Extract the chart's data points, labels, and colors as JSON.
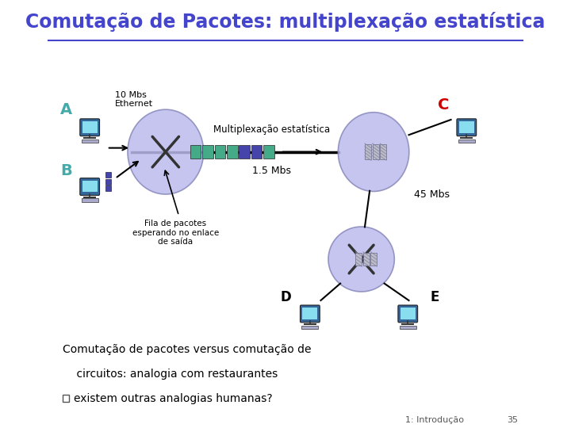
{
  "title": "Comutação de Pacotes: multiplexação estatística",
  "title_color": "#4444cc",
  "title_fontsize": 17,
  "bg_color": "#ffffff",
  "label_A": "A",
  "label_B": "B",
  "label_C": "C",
  "label_D": "D",
  "label_E": "E",
  "label_A_color": "#44aaaa",
  "label_B_color": "#44aaaa",
  "label_C_color": "#cc0000",
  "label_D_color": "#000000",
  "label_E_color": "#000000",
  "text_10mbs": "10 Mbs\nEthernet",
  "text_mux": "Multiplexação estatística",
  "text_15mbs": "1.5 Mbs",
  "text_45mbs": "45 Mbs",
  "text_fila": "Fila de pacotes\nesperando no enlace\nde saída",
  "text_bottom1": "Comutação de pacotes versus comutação de",
  "text_bottom2": "    circuitos: analogia com restaurantes",
  "text_footer": "1: Introdução",
  "text_page": "35",
  "node_color": "#bbbbee",
  "packet_color_A": "#44aa88",
  "packet_color_B": "#4444aa",
  "packet_color_C": "#bbbbcc",
  "link_color": "#000000",
  "arrow_color": "#000000"
}
